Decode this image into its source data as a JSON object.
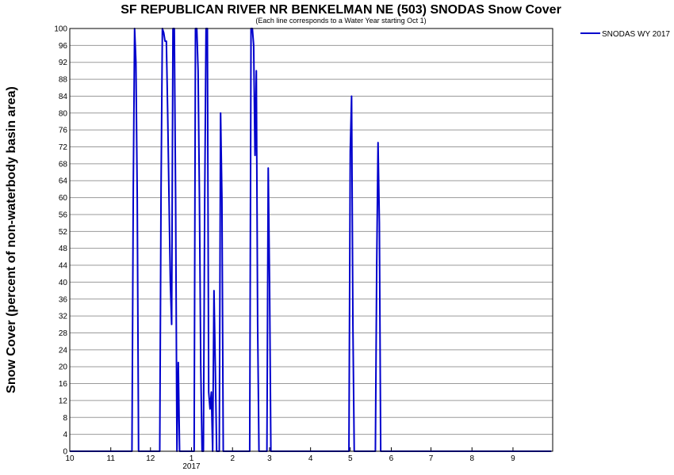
{
  "chart_data": {
    "type": "line",
    "title": "SF REPUBLICAN RIVER NR BENKELMAN NE (503) SNODAS Snow Cover",
    "subtitle": "(Each line corresponds to a Water Year starting Oct 1)",
    "ylabel": "Snow Cover (percent of non-waterbody basin area)",
    "xlabel": "",
    "ylim": [
      0,
      100
    ],
    "xlim": [
      "2016-10-01",
      "2017-09-30"
    ],
    "grid": true,
    "legend_position": "top-right",
    "y_ticks": [
      0,
      4,
      8,
      12,
      16,
      20,
      24,
      28,
      32,
      36,
      40,
      44,
      48,
      52,
      56,
      60,
      64,
      68,
      72,
      76,
      80,
      84,
      88,
      92,
      96,
      100
    ],
    "x_ticks": [
      {
        "date": "2016-10-01",
        "label": "10"
      },
      {
        "date": "2016-11-01",
        "label": "11"
      },
      {
        "date": "2016-12-01",
        "label": "12"
      },
      {
        "date": "2017-01-01",
        "label": "1",
        "sublabel": "2017"
      },
      {
        "date": "2017-02-01",
        "label": "2"
      },
      {
        "date": "2017-03-01",
        "label": "3"
      },
      {
        "date": "2017-04-01",
        "label": "4"
      },
      {
        "date": "2017-05-01",
        "label": "5"
      },
      {
        "date": "2017-06-01",
        "label": "6"
      },
      {
        "date": "2017-07-01",
        "label": "7"
      },
      {
        "date": "2017-08-01",
        "label": "8"
      },
      {
        "date": "2017-09-01",
        "label": "9"
      }
    ],
    "series": [
      {
        "name": "SNODAS WY 2017",
        "color": "#0000cc",
        "points": [
          [
            "2016-10-01",
            0
          ],
          [
            "2016-11-17",
            0
          ],
          [
            "2016-11-18",
            62
          ],
          [
            "2016-11-19",
            100
          ],
          [
            "2016-11-20",
            92
          ],
          [
            "2016-11-21",
            60
          ],
          [
            "2016-11-22",
            0
          ],
          [
            "2016-12-08",
            0
          ],
          [
            "2016-12-09",
            62
          ],
          [
            "2016-12-10",
            100
          ],
          [
            "2016-12-11",
            99
          ],
          [
            "2016-12-12",
            97
          ],
          [
            "2016-12-13",
            97
          ],
          [
            "2016-12-14",
            80
          ],
          [
            "2016-12-15",
            60
          ],
          [
            "2016-12-16",
            40
          ],
          [
            "2016-12-17",
            30
          ],
          [
            "2016-12-18",
            100
          ],
          [
            "2016-12-19",
            100
          ],
          [
            "2016-12-20",
            60
          ],
          [
            "2016-12-21",
            0
          ],
          [
            "2016-12-22",
            21
          ],
          [
            "2016-12-23",
            0
          ],
          [
            "2016-12-24",
            0
          ],
          [
            "2017-01-03",
            0
          ],
          [
            "2017-01-04",
            100
          ],
          [
            "2017-01-05",
            100
          ],
          [
            "2017-01-06",
            90
          ],
          [
            "2017-01-07",
            60
          ],
          [
            "2017-01-08",
            20
          ],
          [
            "2017-01-09",
            0
          ],
          [
            "2017-01-10",
            0
          ],
          [
            "2017-01-11",
            60
          ],
          [
            "2017-01-12",
            100
          ],
          [
            "2017-01-13",
            100
          ],
          [
            "2017-01-14",
            14
          ],
          [
            "2017-01-15",
            10
          ],
          [
            "2017-01-16",
            14
          ],
          [
            "2017-01-17",
            0
          ],
          [
            "2017-01-18",
            38
          ],
          [
            "2017-01-19",
            20
          ],
          [
            "2017-01-20",
            0
          ],
          [
            "2017-01-22",
            0
          ],
          [
            "2017-01-23",
            80
          ],
          [
            "2017-01-24",
            60
          ],
          [
            "2017-01-25",
            0
          ],
          [
            "2017-02-14",
            0
          ],
          [
            "2017-02-15",
            100
          ],
          [
            "2017-02-16",
            100
          ],
          [
            "2017-02-17",
            96
          ],
          [
            "2017-02-18",
            70
          ],
          [
            "2017-02-19",
            90
          ],
          [
            "2017-02-20",
            30
          ],
          [
            "2017-02-21",
            0
          ],
          [
            "2017-02-27",
            0
          ],
          [
            "2017-02-28",
            67
          ],
          [
            "2017-03-01",
            40
          ],
          [
            "2017-03-02",
            0
          ],
          [
            "2017-04-30",
            0
          ],
          [
            "2017-05-01",
            71
          ],
          [
            "2017-05-02",
            84
          ],
          [
            "2017-05-03",
            30
          ],
          [
            "2017-05-04",
            0
          ],
          [
            "2017-05-20",
            0
          ],
          [
            "2017-05-21",
            44
          ],
          [
            "2017-05-22",
            73
          ],
          [
            "2017-05-23",
            54
          ],
          [
            "2017-05-24",
            0
          ],
          [
            "2017-05-25",
            0
          ],
          [
            "2017-09-30",
            0
          ]
        ]
      }
    ]
  }
}
